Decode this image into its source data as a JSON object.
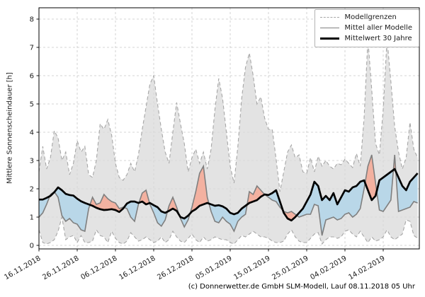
{
  "figure": {
    "ylabel": "Mittlere Sonnenscheindauer [h]",
    "caption": "(c) Donnerwetter.de GmbH SLM-Modell, Lauf 08.11.2018 05 Uhr"
  },
  "legend": {
    "position": "upper right",
    "items": [
      {
        "label": "Modellgrenzen",
        "style": "dashed",
        "color": "#a6a6a6"
      },
      {
        "label": "Mittel aller Modelle",
        "style": "solid",
        "color": "#7f7f7f"
      },
      {
        "label": "Mittelwert 30 Jahre",
        "style": "solid-thick",
        "color": "#000000"
      }
    ]
  },
  "chart_data": {
    "type": "line",
    "title": "",
    "xlabel": "",
    "ylabel": "Mittlere Sonnenscheindauer [h]",
    "ylim": [
      -0.125,
      8.4
    ],
    "yticks": [
      0,
      1,
      2,
      3,
      4,
      5,
      6,
      7,
      8
    ],
    "grid": true,
    "legend_position": "upper right",
    "x_axis": {
      "unit": "day index from 16.11.2018, step 1 day, 100 points",
      "tick_days": [
        0,
        10,
        20,
        30,
        40,
        50,
        60,
        70,
        80,
        90
      ],
      "tick_labels": [
        "16.11.2018",
        "26.11.2018",
        "06.12.2018",
        "16.12.2018",
        "26.12.2018",
        "05.01.2019",
        "15.01.2019",
        "25.01.2019",
        "04.02.2019",
        "14.02.2019"
      ]
    },
    "colors": {
      "band_fill": "#d8d8d8",
      "envelope_line": "#a6a6a6",
      "model_mean_line": "#7f7f7f",
      "mean30_line": "#000000",
      "fill_model_above_mean30": "#f3b1a0",
      "fill_model_below_mean30": "#b9d7e8",
      "grid_line": "#c9c9c9"
    },
    "series": [
      {
        "name": "Modellgrenzen (obere Grenze)",
        "role": "upper",
        "values": [
          2.6,
          3.5,
          2.7,
          3.1,
          4.05,
          3.8,
          3.0,
          3.3,
          2.5,
          2.9,
          3.7,
          3.3,
          3.5,
          2.5,
          2.4,
          3.0,
          4.3,
          4.1,
          4.45,
          3.9,
          2.9,
          2.4,
          2.3,
          2.5,
          2.9,
          2.6,
          3.2,
          4.1,
          4.9,
          5.7,
          6.0,
          5.0,
          4.1,
          3.3,
          2.9,
          4.0,
          5.05,
          4.3,
          3.6,
          2.6,
          3.1,
          3.4,
          2.9,
          3.3,
          2.7,
          3.4,
          4.8,
          5.9,
          5.2,
          4.0,
          2.8,
          2.2,
          3.5,
          5.2,
          6.3,
          6.8,
          6.0,
          5.0,
          5.25,
          4.5,
          4.1,
          4.1,
          3.05,
          1.9,
          2.6,
          3.3,
          3.55,
          3.1,
          3.2,
          2.6,
          2.55,
          3.1,
          2.6,
          3.15,
          2.8,
          3.0,
          2.8,
          2.7,
          2.9,
          2.85,
          3.05,
          2.9,
          2.75,
          3.25,
          2.8,
          4.5,
          7.3,
          5.5,
          3.6,
          3.2,
          4.8,
          7.3,
          5.8,
          4.2,
          3.3,
          2.7,
          3.1,
          4.35,
          3.4,
          3.1
        ]
      },
      {
        "name": "Modellgrenzen (untere Grenze)",
        "role": "lower",
        "values": [
          0.55,
          0.1,
          0.05,
          0.1,
          0.2,
          0.5,
          1.0,
          0.2,
          0.3,
          0.35,
          0.1,
          0.35,
          0.1,
          0.1,
          0.15,
          0.55,
          0.35,
          0.3,
          0.1,
          0.5,
          0.25,
          0.1,
          0.05,
          0.15,
          0.45,
          0.3,
          0.15,
          0.2,
          0.3,
          0.2,
          0.1,
          0.15,
          0.3,
          0.1,
          0.2,
          0.5,
          0.3,
          0.15,
          0.1,
          0.25,
          0.4,
          0.2,
          0.1,
          0.3,
          0.15,
          0.2,
          0.3,
          0.25,
          0.2,
          0.2,
          0.1,
          0.05,
          0.2,
          0.35,
          0.3,
          0.4,
          0.5,
          0.4,
          0.3,
          0.3,
          0.25,
          0.15,
          0.1,
          0.1,
          0.15,
          0.4,
          0.55,
          0.3,
          0.15,
          0.1,
          0.1,
          0.25,
          0.4,
          0.45,
          0.05,
          0.2,
          0.3,
          0.3,
          0.25,
          0.3,
          0.5,
          0.55,
          0.4,
          0.3,
          0.5,
          0.3,
          0.1,
          0.3,
          0.15,
          0.2,
          0.3,
          0.55,
          0.3,
          0.2,
          0.3,
          0.4,
          0.9,
          0.85,
          0.35,
          0.25
        ]
      },
      {
        "name": "Mittel aller Modelle",
        "role": "model_mean",
        "values": [
          1.0,
          1.15,
          1.45,
          1.8,
          1.9,
          1.7,
          1.05,
          0.85,
          0.95,
          0.8,
          0.75,
          0.55,
          0.5,
          1.3,
          1.7,
          1.45,
          1.5,
          1.8,
          1.65,
          1.55,
          1.5,
          1.3,
          1.35,
          1.3,
          1.0,
          0.85,
          1.45,
          1.85,
          1.95,
          1.45,
          1.15,
          0.8,
          0.68,
          0.9,
          1.4,
          1.7,
          1.35,
          0.95,
          0.65,
          0.9,
          1.35,
          1.9,
          2.55,
          2.8,
          1.7,
          1.2,
          0.85,
          0.8,
          1.0,
          0.85,
          0.75,
          0.5,
          0.85,
          1.0,
          1.1,
          1.9,
          1.8,
          2.1,
          1.95,
          1.8,
          1.7,
          1.6,
          1.55,
          1.35,
          1.2,
          1.15,
          1.2,
          1.1,
          1.0,
          1.05,
          1.1,
          1.1,
          1.45,
          1.4,
          0.35,
          0.9,
          0.95,
          1.0,
          0.9,
          0.95,
          1.1,
          1.15,
          1.0,
          1.1,
          1.3,
          2.0,
          2.8,
          3.2,
          2.2,
          1.25,
          1.2,
          1.4,
          1.6,
          3.2,
          1.2,
          1.25,
          1.3,
          1.35,
          1.55,
          1.5
        ]
      },
      {
        "name": "Mittelwert 30 Jahre",
        "role": "mean_30y",
        "values": [
          1.62,
          1.62,
          1.68,
          1.75,
          1.88,
          2.05,
          1.95,
          1.82,
          1.78,
          1.76,
          1.65,
          1.56,
          1.5,
          1.45,
          1.4,
          1.33,
          1.28,
          1.25,
          1.26,
          1.28,
          1.25,
          1.18,
          1.3,
          1.48,
          1.55,
          1.55,
          1.5,
          1.55,
          1.45,
          1.5,
          1.42,
          1.35,
          1.2,
          1.15,
          1.22,
          1.3,
          1.22,
          1.0,
          0.95,
          1.05,
          1.2,
          1.28,
          1.4,
          1.45,
          1.5,
          1.45,
          1.4,
          1.42,
          1.38,
          1.3,
          1.15,
          1.1,
          1.15,
          1.3,
          1.4,
          1.5,
          1.55,
          1.6,
          1.72,
          1.8,
          1.78,
          1.85,
          1.95,
          1.55,
          1.15,
          0.95,
          0.88,
          1.0,
          1.15,
          1.3,
          1.55,
          1.8,
          2.25,
          2.1,
          1.6,
          1.75,
          1.6,
          1.85,
          1.45,
          1.7,
          1.95,
          1.9,
          2.05,
          2.1,
          2.25,
          2.3,
          1.95,
          1.6,
          1.75,
          2.3,
          2.4,
          2.5,
          2.6,
          2.7,
          2.4,
          2.1,
          1.95,
          2.25,
          2.4,
          2.55
        ]
      }
    ]
  }
}
